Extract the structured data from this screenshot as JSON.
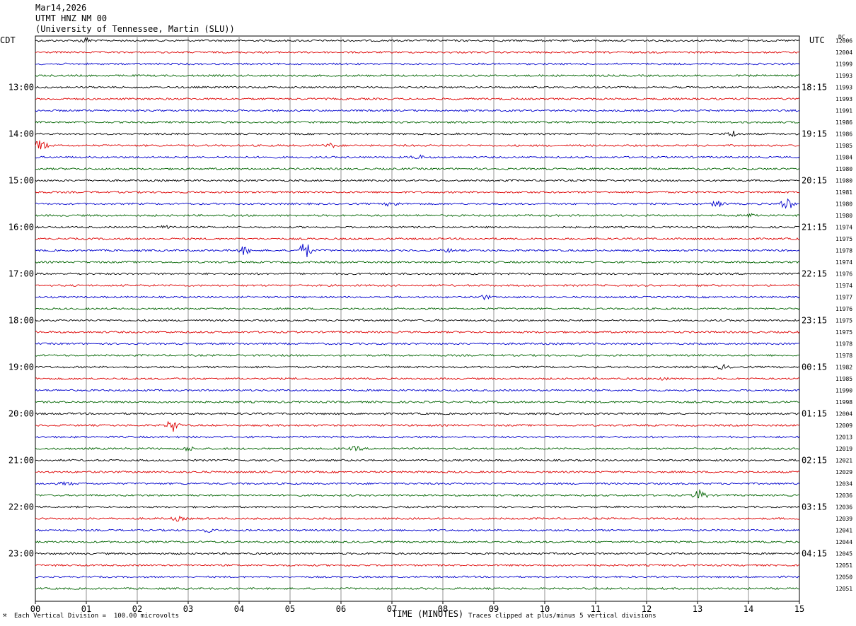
{
  "header": {
    "date": "Mar14,2026",
    "station": "UTMT HNZ NM 00",
    "institution": "(University of Tennessee, Martin (SLU))"
  },
  "left_axis_label": "CDT",
  "right_axis_label": "UTC",
  "dc_label": "DC",
  "footer": {
    "left_note": "Each Vertical Division =  100.00 microvolts",
    "xlabel": "TIME (MINUTES)",
    "right_note": "Traces clipped at plus/minus 5 vertical divisions"
  },
  "colors": {
    "trace_cycle": [
      "#000000",
      "#dd0000",
      "#0000cc",
      "#006400"
    ],
    "grid": "#909090"
  },
  "chart_data": {
    "type": "line",
    "subtype": "helicorder",
    "x_tick_labels": [
      "00",
      "01",
      "02",
      "03",
      "04",
      "05",
      "06",
      "07",
      "08",
      "09",
      "10",
      "11",
      "12",
      "13",
      "14",
      "15"
    ],
    "xlim": [
      0,
      15
    ],
    "rows_per_hour": 4,
    "trace_count": 48,
    "cdt_hour_labels": [
      "13:00",
      "14:00",
      "15:00",
      "16:00",
      "17:00",
      "18:00",
      "19:00",
      "20:00",
      "21:00",
      "22:00",
      "23:00"
    ],
    "utc_hour_labels": [
      "18:15",
      "19:15",
      "20:15",
      "21:15",
      "22:15",
      "23:15",
      "00:15",
      "01:15",
      "02:15",
      "03:15",
      "04:15"
    ],
    "dc_offsets": [
      "12006",
      "12004",
      "11999",
      "11993",
      "11993",
      "11993",
      "11991",
      "11986",
      "11986",
      "11985",
      "11984",
      "11980",
      "11980",
      "11981",
      "11980",
      "11980",
      "11974",
      "11975",
      "11978",
      "11974",
      "11976",
      "11974",
      "11977",
      "11976",
      "11975",
      "11975",
      "11978",
      "11978",
      "11982",
      "11985",
      "11990",
      "11998",
      "12004",
      "12009",
      "12013",
      "12019",
      "12021",
      "12029",
      "12034",
      "12036",
      "12036",
      "12039",
      "12041",
      "12044",
      "12045",
      "12051",
      "12050",
      "12051"
    ],
    "events": [
      {
        "trace": 0,
        "minute": 1.0,
        "amplitude": 0.5
      },
      {
        "trace": 8,
        "minute": 13.7,
        "amplitude": 0.6
      },
      {
        "trace": 9,
        "minute": 0.1,
        "amplitude": 1.2
      },
      {
        "trace": 9,
        "minute": 5.8,
        "amplitude": 0.4
      },
      {
        "trace": 10,
        "minute": 7.5,
        "amplitude": 0.4
      },
      {
        "trace": 14,
        "minute": 7.0,
        "amplitude": 0.5
      },
      {
        "trace": 14,
        "minute": 13.4,
        "amplitude": 0.6
      },
      {
        "trace": 14,
        "minute": 14.75,
        "amplitude": 1.3
      },
      {
        "trace": 15,
        "minute": 14.1,
        "amplitude": 0.4
      },
      {
        "trace": 16,
        "minute": 2.6,
        "amplitude": 0.4
      },
      {
        "trace": 18,
        "minute": 4.1,
        "amplitude": 0.8
      },
      {
        "trace": 18,
        "minute": 5.3,
        "amplitude": 1.7
      },
      {
        "trace": 18,
        "minute": 8.1,
        "amplitude": 0.3
      },
      {
        "trace": 22,
        "minute": 8.8,
        "amplitude": 0.4
      },
      {
        "trace": 28,
        "minute": 13.5,
        "amplitude": 0.4
      },
      {
        "trace": 29,
        "minute": 12.3,
        "amplitude": 0.3
      },
      {
        "trace": 33,
        "minute": 2.7,
        "amplitude": 1.2
      },
      {
        "trace": 35,
        "minute": 3.0,
        "amplitude": 0.4
      },
      {
        "trace": 35,
        "minute": 6.3,
        "amplitude": 0.4
      },
      {
        "trace": 38,
        "minute": 0.6,
        "amplitude": 0.3
      },
      {
        "trace": 39,
        "minute": 13.05,
        "amplitude": 1.1
      },
      {
        "trace": 41,
        "minute": 2.8,
        "amplitude": 0.4
      },
      {
        "trace": 42,
        "minute": 3.4,
        "amplitude": 0.3
      }
    ]
  }
}
